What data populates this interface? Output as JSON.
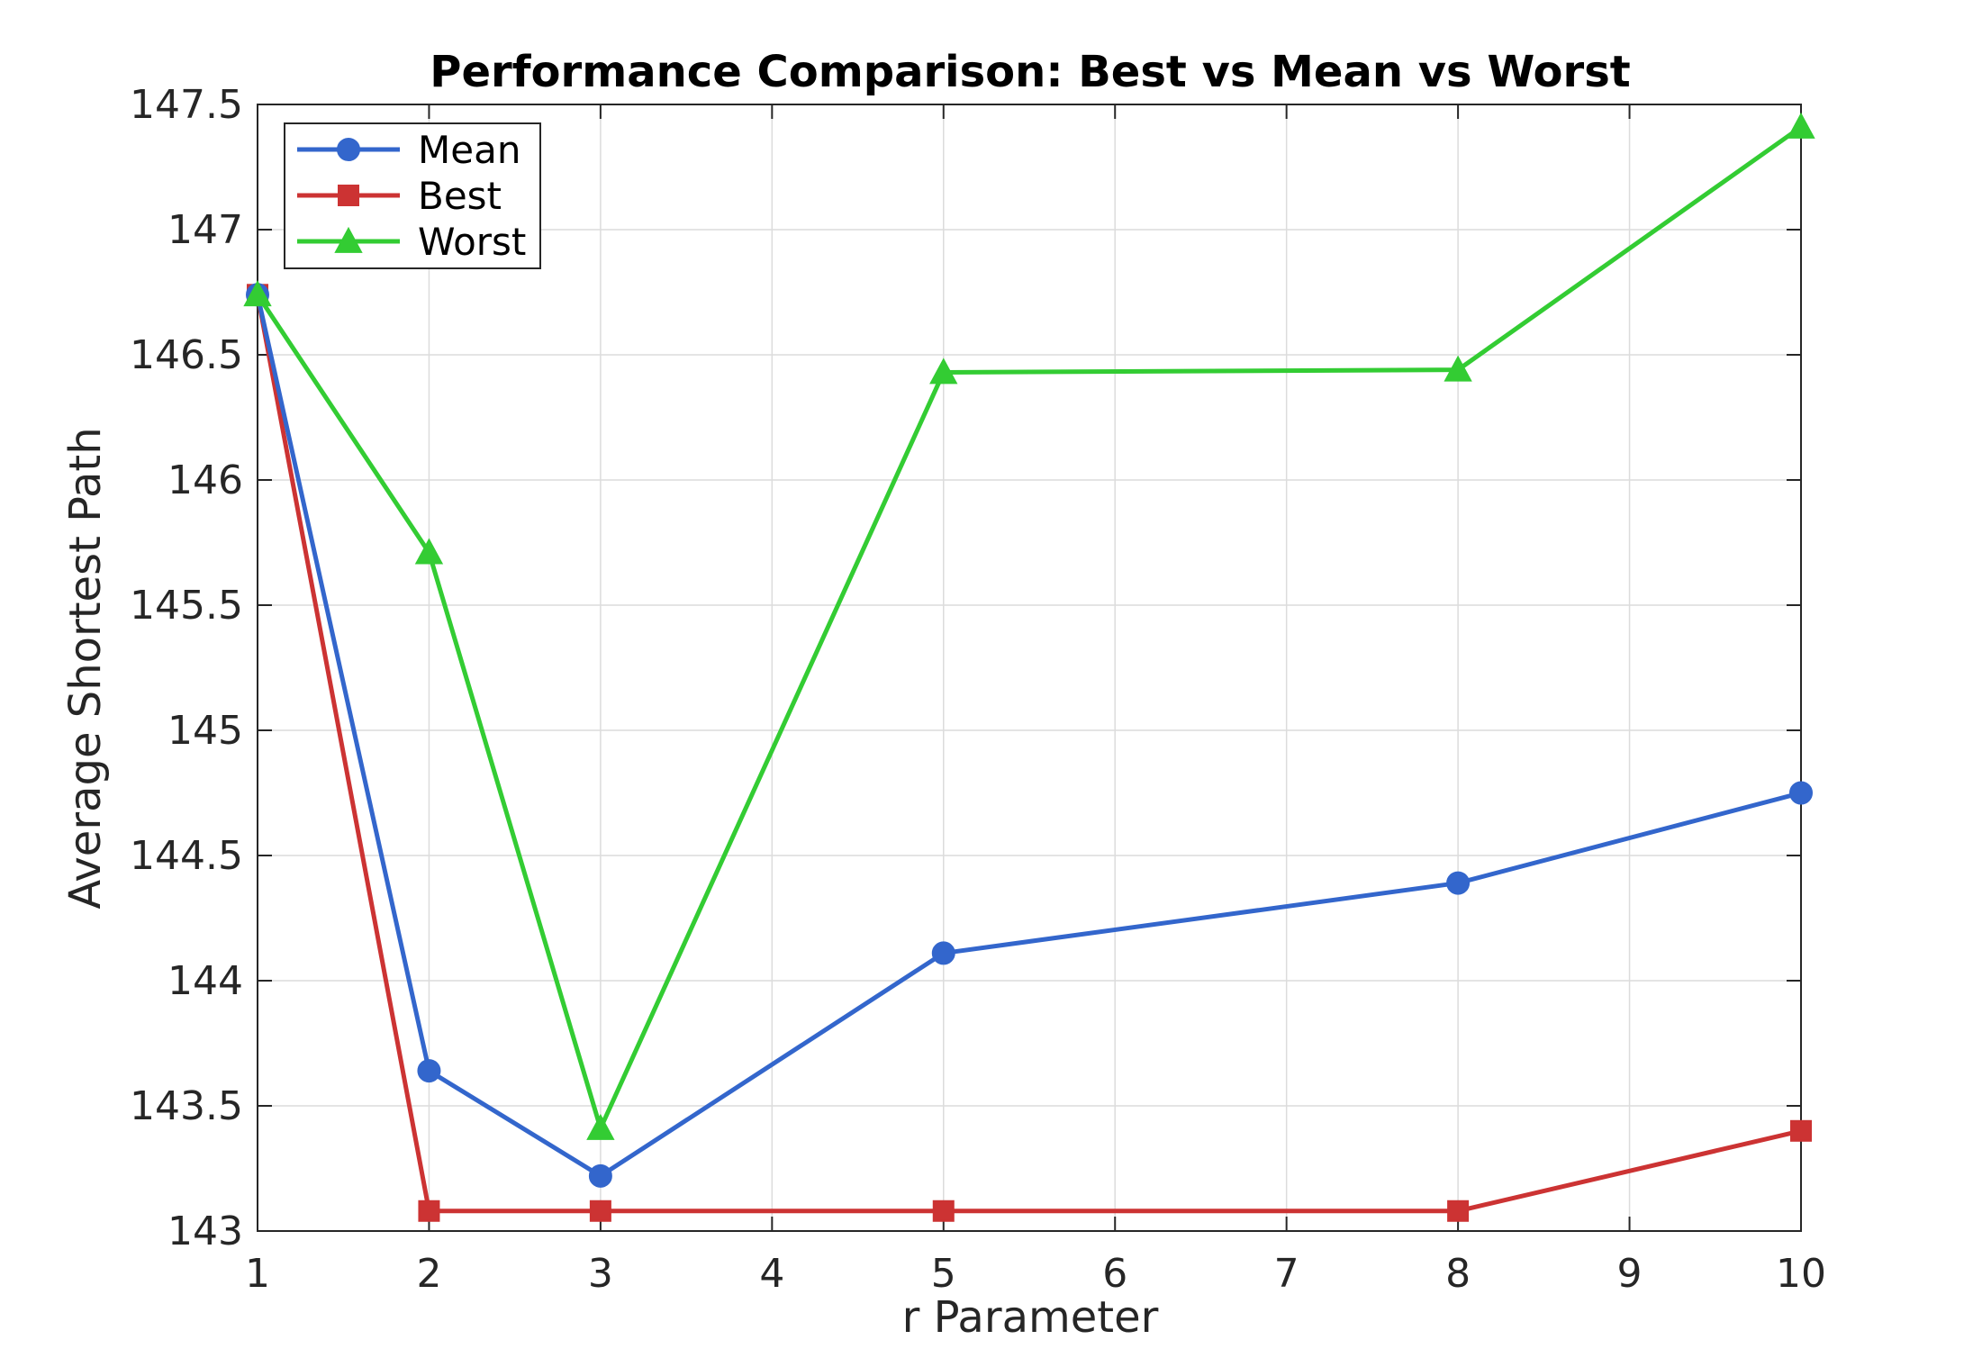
{
  "chart_data": {
    "type": "line",
    "title": "Performance Comparison: Best vs Mean vs Worst",
    "xlabel": "r Parameter",
    "ylabel": "Average Shortest Path",
    "xlim": [
      1,
      10
    ],
    "ylim": [
      143,
      147.5
    ],
    "xticks": [
      1,
      2,
      3,
      4,
      5,
      6,
      7,
      8,
      9,
      10
    ],
    "yticks": [
      143,
      143.5,
      144,
      144.5,
      145,
      145.5,
      146,
      146.5,
      147,
      147.5
    ],
    "grid": true,
    "legend_position": "top-left",
    "x": [
      1,
      2,
      3,
      5,
      8,
      10
    ],
    "series": [
      {
        "name": "Mean",
        "marker": "circle",
        "color": "#3366CC",
        "values": [
          146.74,
          143.64,
          143.22,
          144.11,
          144.39,
          144.75
        ]
      },
      {
        "name": "Best",
        "marker": "square",
        "color": "#CC3333",
        "values": [
          146.74,
          143.08,
          143.08,
          143.08,
          143.08,
          143.4
        ]
      },
      {
        "name": "Worst",
        "marker": "triangle",
        "color": "#33CC33",
        "values": [
          146.74,
          145.71,
          143.41,
          146.43,
          146.44,
          147.41
        ]
      }
    ]
  }
}
